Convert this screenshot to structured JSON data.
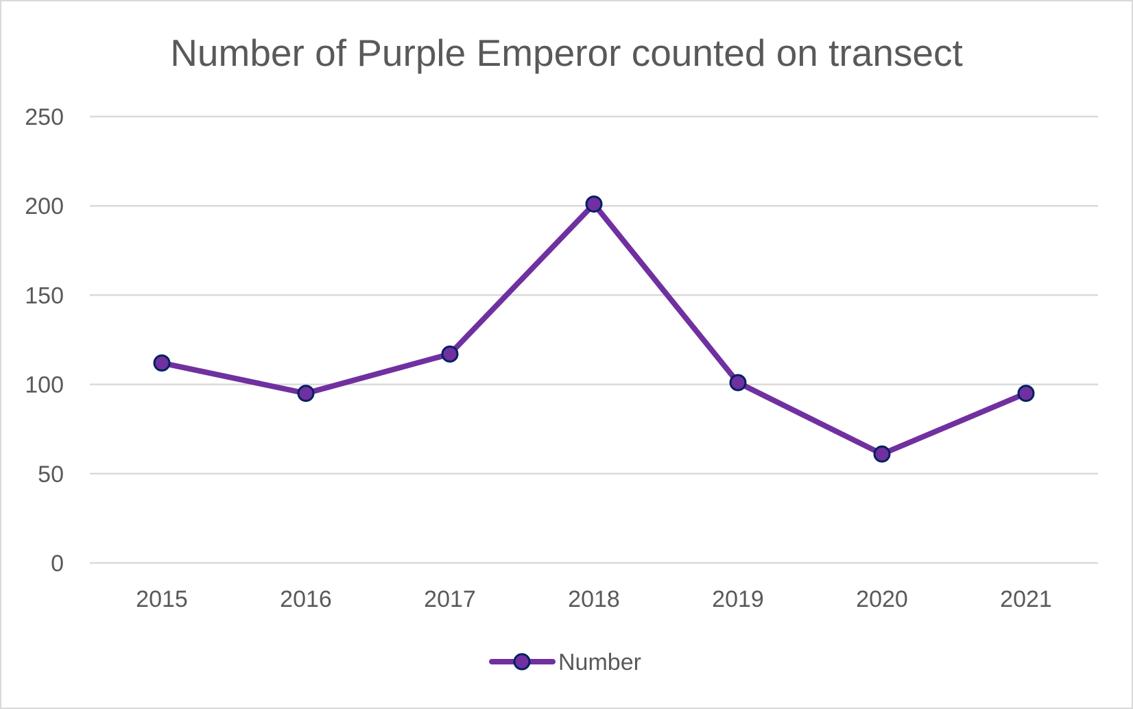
{
  "chart_data": {
    "type": "line",
    "title": "Number of Purple Emperor counted on transect",
    "xlabel": "",
    "ylabel": "",
    "categories": [
      "2015",
      "2016",
      "2017",
      "2018",
      "2019",
      "2020",
      "2021"
    ],
    "series": [
      {
        "name": "Number",
        "values": [
          112,
          95,
          117,
          201,
          101,
          61,
          95
        ],
        "color": "#7030a0",
        "marker_edge": "#002060"
      }
    ],
    "ylim": [
      0,
      250
    ],
    "yticks": [
      0,
      50,
      100,
      150,
      200,
      250
    ],
    "ytick_labels": [
      "0",
      "50",
      "100",
      "150",
      "200",
      "250"
    ],
    "grid": true,
    "legend": {
      "position": "bottom",
      "entries": [
        "Number"
      ]
    }
  }
}
